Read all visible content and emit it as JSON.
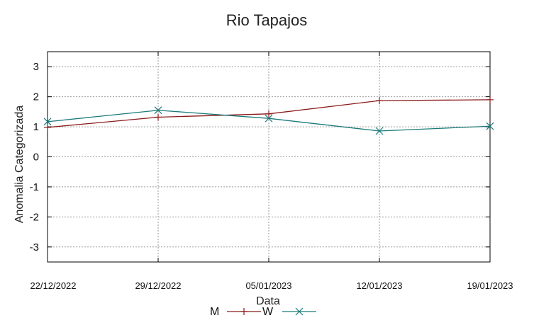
{
  "chart_data": {
    "type": "line",
    "title": "Rio Tapajos",
    "xlabel": "Data",
    "ylabel": "Anomalia Categorizada",
    "categories": [
      "22/12/2022",
      "29/12/2022",
      "05/01/2023",
      "12/01/2023",
      "19/01/2023"
    ],
    "ylim": [
      -3.5,
      3.5
    ],
    "yticks": [
      3,
      2,
      1,
      0,
      -1,
      -2,
      -3
    ],
    "grid": true,
    "legend_position": "bottom",
    "series": [
      {
        "name": "M",
        "color": "#8b1a1a",
        "marker": "plus",
        "values": [
          0.98,
          1.32,
          1.43,
          1.87,
          1.9
        ]
      },
      {
        "name": "W",
        "color": "#1a7a7a",
        "marker": "x",
        "values": [
          1.17,
          1.55,
          1.28,
          0.86,
          1.02
        ]
      }
    ]
  }
}
